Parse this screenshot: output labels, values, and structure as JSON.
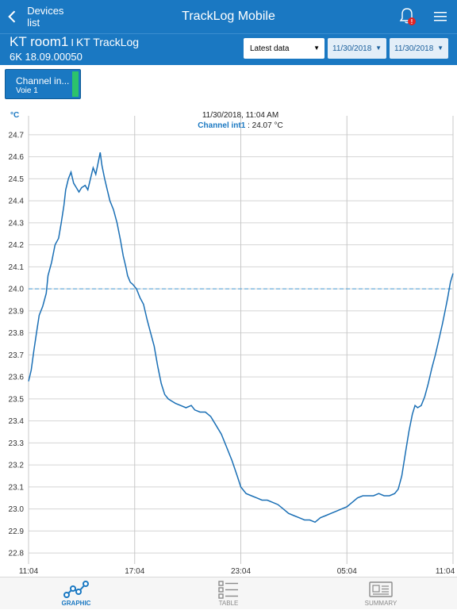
{
  "header": {
    "back_label": "Devices list",
    "title": "TrackLog Mobile"
  },
  "device": {
    "name": "KT room1",
    "separator": "I",
    "model": "KT TrackLog",
    "serial": "6K 18.09.00050"
  },
  "filters": {
    "range": "Latest data",
    "date_from": "11/30/2018",
    "date_to": "11/30/2018"
  },
  "channel": {
    "label": "Channel in...",
    "sub": "Voie 1",
    "color": "#2cc36b"
  },
  "tabs": [
    {
      "label": "GRAPHIC",
      "icon": "graphic-icon",
      "active": true
    },
    {
      "label": "TABLE",
      "icon": "table-icon",
      "active": false
    },
    {
      "label": "SUMMARY",
      "icon": "summary-icon",
      "active": false
    }
  ],
  "chart_data": {
    "type": "line",
    "ylabel": "°C",
    "ylim": [
      22.75,
      24.75
    ],
    "yticks": [
      "24.7",
      "24.6",
      "24.5",
      "24.4",
      "24.3",
      "24.2",
      "24.1",
      "24.0",
      "23.9",
      "23.8",
      "23.7",
      "23.6",
      "23.5",
      "23.4",
      "23.3",
      "23.2",
      "23.1",
      "23.0",
      "22.9",
      "22.8"
    ],
    "xticks": [
      "11:04",
      "17:04",
      "23:04",
      "05:04",
      "11:04"
    ],
    "x_hours": [
      0,
      6,
      12,
      18,
      24
    ],
    "cursor": {
      "time": "11/30/2018, 11:04 AM",
      "series": "Channel int1",
      "value": "24.07 °C"
    },
    "reference_line": 24.0,
    "series": [
      {
        "name": "Channel int1",
        "color": "#1a6fb5",
        "points": [
          [
            0,
            23.58
          ],
          [
            0.15,
            23.63
          ],
          [
            0.3,
            23.72
          ],
          [
            0.45,
            23.8
          ],
          [
            0.6,
            23.88
          ],
          [
            0.8,
            23.92
          ],
          [
            1.0,
            23.98
          ],
          [
            1.1,
            24.06
          ],
          [
            1.3,
            24.12
          ],
          [
            1.5,
            24.2
          ],
          [
            1.7,
            24.23
          ],
          [
            1.85,
            24.3
          ],
          [
            2.0,
            24.38
          ],
          [
            2.1,
            24.45
          ],
          [
            2.25,
            24.5
          ],
          [
            2.4,
            24.53
          ],
          [
            2.55,
            24.48
          ],
          [
            2.7,
            24.46
          ],
          [
            2.85,
            24.44
          ],
          [
            3.0,
            24.46
          ],
          [
            3.2,
            24.47
          ],
          [
            3.35,
            24.45
          ],
          [
            3.5,
            24.5
          ],
          [
            3.65,
            24.55
          ],
          [
            3.8,
            24.52
          ],
          [
            3.95,
            24.58
          ],
          [
            4.05,
            24.62
          ],
          [
            4.15,
            24.56
          ],
          [
            4.3,
            24.5
          ],
          [
            4.45,
            24.45
          ],
          [
            4.6,
            24.4
          ],
          [
            4.8,
            24.36
          ],
          [
            5.0,
            24.3
          ],
          [
            5.2,
            24.22
          ],
          [
            5.35,
            24.15
          ],
          [
            5.5,
            24.1
          ],
          [
            5.6,
            24.06
          ],
          [
            5.75,
            24.03
          ],
          [
            5.9,
            24.02
          ],
          [
            6.1,
            24.0
          ],
          [
            6.3,
            23.96
          ],
          [
            6.5,
            23.93
          ],
          [
            6.7,
            23.86
          ],
          [
            6.9,
            23.8
          ],
          [
            7.1,
            23.74
          ],
          [
            7.3,
            23.65
          ],
          [
            7.5,
            23.57
          ],
          [
            7.7,
            23.52
          ],
          [
            7.9,
            23.5
          ],
          [
            8.1,
            23.49
          ],
          [
            8.3,
            23.48
          ],
          [
            8.6,
            23.47
          ],
          [
            8.9,
            23.46
          ],
          [
            9.2,
            23.47
          ],
          [
            9.4,
            23.45
          ],
          [
            9.7,
            23.44
          ],
          [
            10.0,
            23.44
          ],
          [
            10.3,
            23.42
          ],
          [
            10.6,
            23.38
          ],
          [
            10.9,
            23.34
          ],
          [
            11.2,
            23.28
          ],
          [
            11.5,
            23.22
          ],
          [
            11.8,
            23.15
          ],
          [
            12.0,
            23.1
          ],
          [
            12.3,
            23.07
          ],
          [
            12.6,
            23.06
          ],
          [
            12.9,
            23.05
          ],
          [
            13.2,
            23.04
          ],
          [
            13.5,
            23.04
          ],
          [
            13.8,
            23.03
          ],
          [
            14.1,
            23.02
          ],
          [
            14.4,
            23.0
          ],
          [
            14.7,
            22.98
          ],
          [
            15.0,
            22.97
          ],
          [
            15.3,
            22.96
          ],
          [
            15.6,
            22.95
          ],
          [
            15.9,
            22.95
          ],
          [
            16.2,
            22.94
          ],
          [
            16.5,
            22.96
          ],
          [
            16.8,
            22.97
          ],
          [
            17.1,
            22.98
          ],
          [
            17.4,
            22.99
          ],
          [
            17.7,
            23.0
          ],
          [
            18.0,
            23.01
          ],
          [
            18.3,
            23.03
          ],
          [
            18.6,
            23.05
          ],
          [
            18.9,
            23.06
          ],
          [
            19.2,
            23.06
          ],
          [
            19.5,
            23.06
          ],
          [
            19.8,
            23.07
          ],
          [
            20.1,
            23.06
          ],
          [
            20.4,
            23.06
          ],
          [
            20.7,
            23.07
          ],
          [
            20.9,
            23.09
          ],
          [
            21.1,
            23.15
          ],
          [
            21.3,
            23.25
          ],
          [
            21.5,
            23.35
          ],
          [
            21.7,
            23.43
          ],
          [
            21.85,
            23.47
          ],
          [
            22.0,
            23.46
          ],
          [
            22.2,
            23.47
          ],
          [
            22.4,
            23.51
          ],
          [
            22.6,
            23.57
          ],
          [
            22.8,
            23.64
          ],
          [
            23.0,
            23.7
          ],
          [
            23.2,
            23.77
          ],
          [
            23.4,
            23.84
          ],
          [
            23.55,
            23.9
          ],
          [
            23.7,
            23.96
          ],
          [
            23.85,
            24.03
          ],
          [
            24.0,
            24.07
          ]
        ]
      }
    ]
  }
}
